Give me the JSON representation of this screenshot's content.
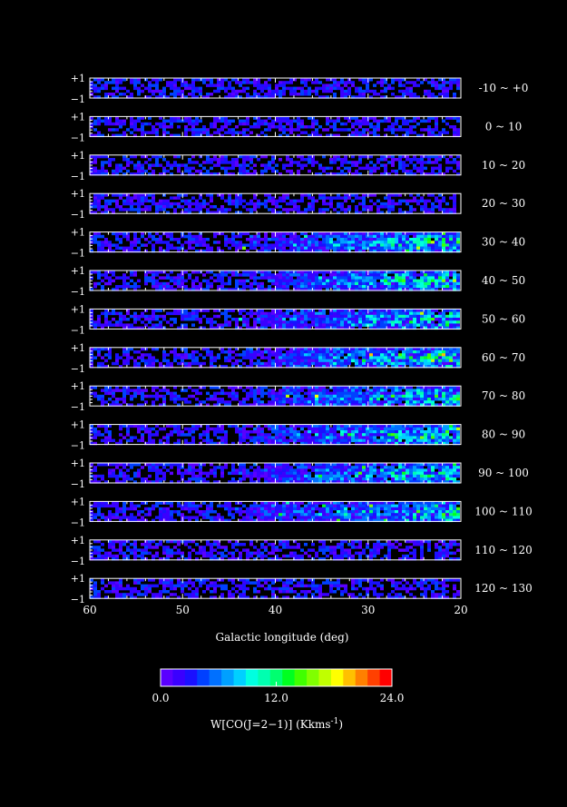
{
  "chart_data": {
    "type": "heatmap",
    "xlabel": "Galactic longitude (deg)",
    "x_ticks": [
      "60",
      "50",
      "40",
      "30",
      "20"
    ],
    "xlim": [
      60,
      20
    ],
    "y_ticks": [
      "+1",
      "−1"
    ],
    "ylim": [
      -1,
      1
    ],
    "panels": [
      {
        "label": "-10 ~ +0",
        "lo": -10,
        "hi": 0
      },
      {
        "label": "0 ~ 10",
        "lo": 0,
        "hi": 10
      },
      {
        "label": "10 ~ 20",
        "lo": 10,
        "hi": 20
      },
      {
        "label": "20 ~ 30",
        "lo": 20,
        "hi": 30
      },
      {
        "label": "30 ~ 40",
        "lo": 30,
        "hi": 40
      },
      {
        "label": "40 ~ 50",
        "lo": 40,
        "hi": 50
      },
      {
        "label": "50 ~ 60",
        "lo": 50,
        "hi": 60
      },
      {
        "label": "60 ~ 70",
        "lo": 60,
        "hi": 70
      },
      {
        "label": "70 ~ 80",
        "lo": 70,
        "hi": 80
      },
      {
        "label": "80 ~ 90",
        "lo": 80,
        "hi": 90
      },
      {
        "label": "90 ~ 100",
        "lo": 90,
        "hi": 100
      },
      {
        "label": "100 ~ 110",
        "lo": 100,
        "hi": 110
      },
      {
        "label": "110 ~ 120",
        "lo": 110,
        "hi": 120
      },
      {
        "label": "120 ~ 130",
        "lo": 120,
        "hi": 130
      }
    ],
    "colorbar": {
      "label": "W[CO(J=2−1)] (Kkms",
      "label_sup": "-1",
      "label_end": ")",
      "min": 0.0,
      "max": 24.0,
      "tick_labels": [
        "0.0",
        "12.0",
        "24.0"
      ],
      "colors": [
        "#5a00ff",
        "#3a00ff",
        "#1a10ff",
        "#0040ff",
        "#0070ff",
        "#00a0ff",
        "#00d0ff",
        "#00ffe0",
        "#00ffb0",
        "#00ff70",
        "#00ff20",
        "#40ff00",
        "#80ff00",
        "#c0ff00",
        "#ffff00",
        "#ffc000",
        "#ff8000",
        "#ff4000",
        "#ff0000"
      ]
    }
  }
}
